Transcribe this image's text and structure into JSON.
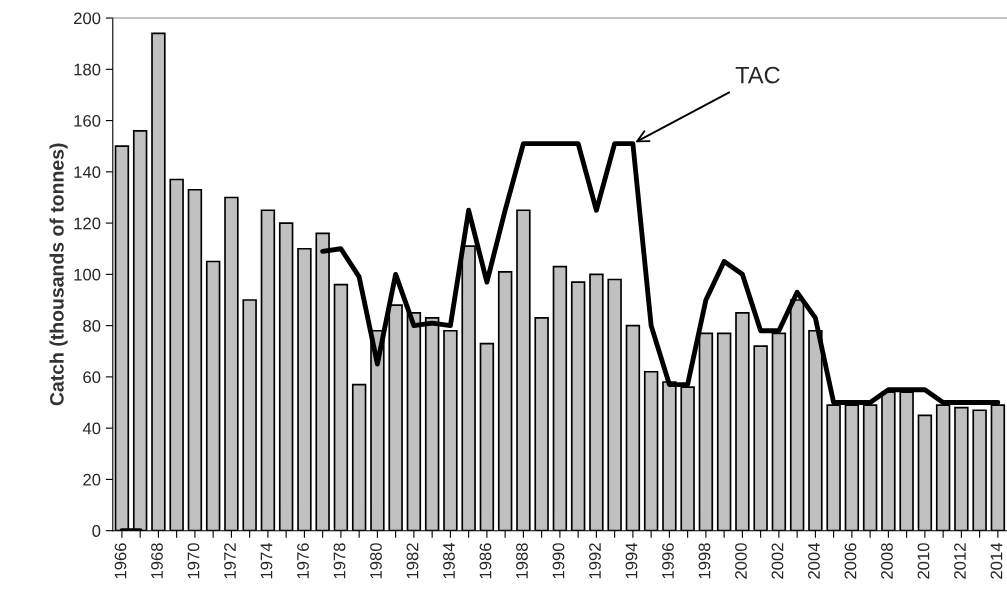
{
  "chart_data": {
    "type": "bar",
    "ylabel": "Catch (thousands of tonnes)",
    "categories": [
      "1966",
      null,
      "1968",
      null,
      "1970",
      null,
      "1972",
      null,
      "1974",
      null,
      "1976",
      null,
      "1978",
      null,
      "1980",
      null,
      "1982",
      null,
      "1984",
      null,
      "1986",
      null,
      "1988",
      null,
      "1990",
      null,
      "1992",
      null,
      "1994",
      null,
      "1996",
      null,
      "1998",
      null,
      "2000",
      null,
      "2002",
      null,
      "2004",
      null,
      "2006",
      null,
      "2008",
      null,
      "2010",
      null,
      "2012",
      null,
      "2014"
    ],
    "series": [
      {
        "color": "#c0c0c0",
        "values": [
          150,
          156,
          194,
          137,
          133,
          105,
          130,
          90,
          125,
          120,
          110,
          116,
          96,
          57,
          78,
          88,
          85,
          83,
          78,
          111,
          73,
          101,
          125,
          83,
          103,
          97,
          100,
          98,
          80,
          62,
          58,
          56,
          77,
          77,
          85,
          72,
          77,
          90,
          78,
          49,
          49,
          49,
          54,
          54,
          45,
          49,
          48,
          47,
          49
        ]
      },
      {
        "type": "line",
        "color": "#000000",
        "values": [
          0,
          0,
          null,
          null,
          null,
          null,
          null,
          null,
          null,
          null,
          null,
          109,
          110,
          99,
          65,
          100,
          80,
          81,
          80,
          125,
          97,
          125,
          151,
          151,
          151,
          151,
          125,
          151,
          151,
          80,
          57,
          57,
          90,
          105,
          100,
          78,
          78,
          93,
          83,
          50,
          50,
          50,
          55,
          55,
          55,
          50,
          50,
          50,
          50
        ]
      }
    ],
    "annotations": [
      {
        "text": "TAC",
        "x": "1994",
        "y": 151
      }
    ],
    "ylim": [
      0,
      200
    ],
    "yticks": [
      0,
      20,
      40,
      60,
      80,
      100,
      120,
      140,
      160,
      180,
      200
    ],
    "grid": false,
    "legend": false
  }
}
